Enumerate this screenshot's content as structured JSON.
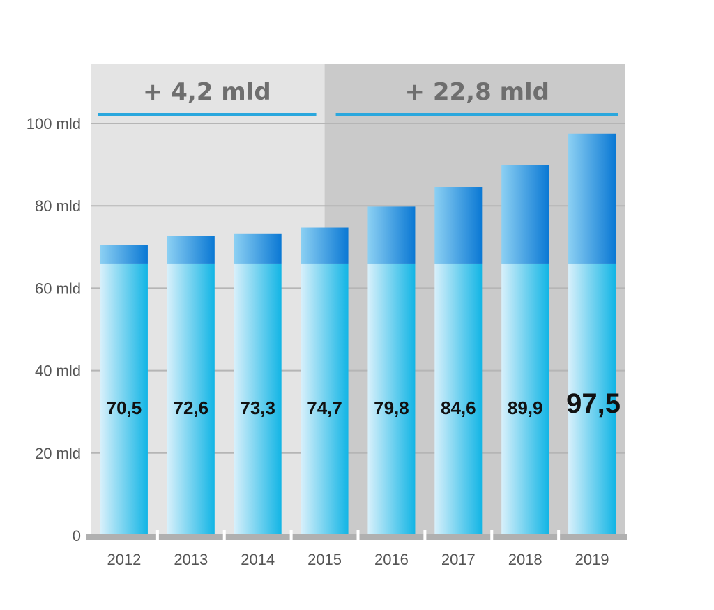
{
  "chart_data": {
    "type": "bar",
    "categories": [
      "2012",
      "2013",
      "2014",
      "2015",
      "2016",
      "2017",
      "2018",
      "2019"
    ],
    "values": [
      70.5,
      72.6,
      73.3,
      74.7,
      79.8,
      84.6,
      89.9,
      97.5
    ],
    "value_labels": [
      "70,5",
      "72,6",
      "73,3",
      "74,7",
      "79,8",
      "84,6",
      "89,9",
      "97,5"
    ],
    "highlighted_index": 7,
    "base_value": 66,
    "ylim": [
      0,
      115
    ],
    "y_ticks": [
      {
        "value": 0,
        "label": "0"
      },
      {
        "value": 20,
        "label": "20 mld"
      },
      {
        "value": 40,
        "label": "40 mld"
      },
      {
        "value": 60,
        "label": "60 mld"
      },
      {
        "value": 80,
        "label": "80 mld"
      },
      {
        "value": 100,
        "label": "100 mld"
      }
    ],
    "grid": true,
    "segments": [
      {
        "label": "+ 4,2 mld",
        "from": "2012",
        "to": "2015"
      },
      {
        "label": "+ 22,8 mld",
        "from": "2016",
        "to": "2019"
      }
    ],
    "colors": {
      "panel_1": "#e4e4e4",
      "panel_2": "#cacaca",
      "bar_lower_light": "#d8f0fb",
      "bar_lower_dark": "#12b5e5",
      "bar_upper_light": "#8cd0f3",
      "bar_upper_dark": "#0a78d4",
      "accent_line": "#2aa7dd",
      "gridline": "#b5b5b5",
      "baseline": "#b0b0b0"
    }
  }
}
